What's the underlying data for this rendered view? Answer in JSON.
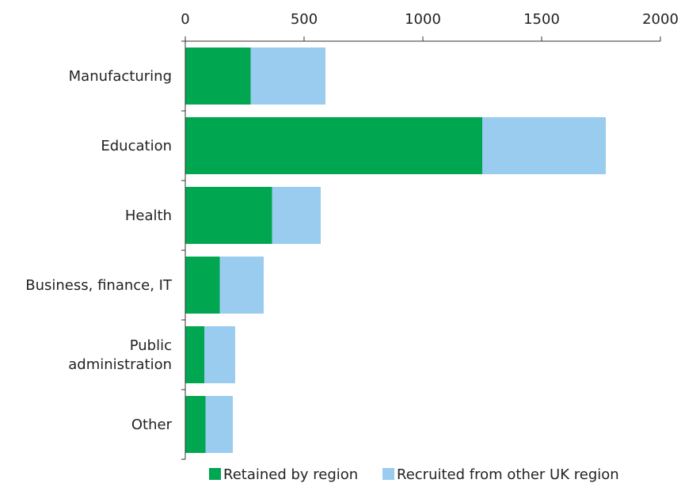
{
  "colors": {
    "retained": "#00a650",
    "recruited": "#99ccee",
    "axis": "#333333"
  },
  "chart_data": {
    "type": "bar",
    "orientation": "horizontal",
    "stacked": true,
    "title": "",
    "xlabel": "",
    "ylabel": "",
    "xlim": [
      0,
      2000
    ],
    "x_ticks": [
      "0",
      "500",
      "1000",
      "1500",
      "2000"
    ],
    "x_tick_values": [
      0,
      500,
      1000,
      1500,
      2000
    ],
    "x_axis_position": "top",
    "grid": false,
    "legend_position": "bottom-right",
    "categories": [
      "Manufacturing",
      "Education",
      "Health",
      "Business, finance, IT",
      "Public administration",
      "Other"
    ],
    "category_lines": [
      [
        "Manufacturing"
      ],
      [
        "Education"
      ],
      [
        "Health"
      ],
      [
        "Business, finance, IT"
      ],
      [
        "Public",
        "administration"
      ],
      [
        "Other"
      ]
    ],
    "series": [
      {
        "name": "Retained by region",
        "color": "#00a650",
        "values": [
          275,
          1250,
          365,
          145,
          80,
          85
        ]
      },
      {
        "name": "Recruited from other UK region",
        "color": "#99ccee",
        "values": [
          315,
          520,
          205,
          185,
          130,
          115
        ]
      }
    ]
  }
}
